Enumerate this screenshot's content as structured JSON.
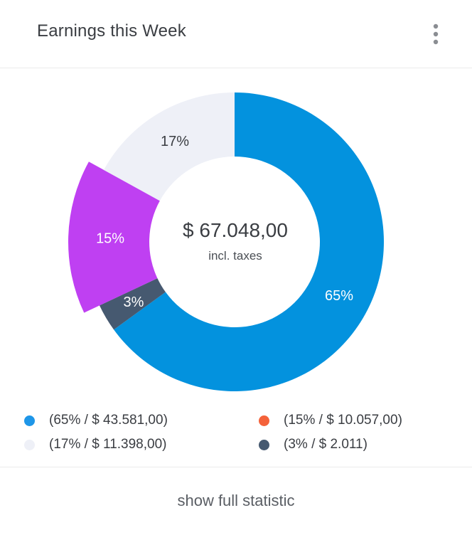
{
  "card": {
    "title": "Earnings this Week",
    "menu_icon": "more-vertical-icon",
    "footer_link": "show full statistic"
  },
  "chart_data": {
    "type": "pie",
    "title": "Earnings this Week",
    "center_value": "$ 67.048,00",
    "center_label": "incl. taxes",
    "slices": [
      {
        "label": "65%",
        "percent": 65,
        "color": "#0392de",
        "exploded": false
      },
      {
        "label": "3%",
        "percent": 3,
        "color": "#465970",
        "exploded": false
      },
      {
        "label": "15%",
        "percent": 15,
        "color": "#bf40f2",
        "exploded": true
      },
      {
        "label": "17%",
        "percent": 17,
        "color": "#eef0f7",
        "exploded": false
      }
    ],
    "legend": [
      {
        "text": "(65% / $ 43.581,00)",
        "color": "#1e96e8"
      },
      {
        "text": "(15% / $ 10.057,00)",
        "color": "#f4623a"
      },
      {
        "text": "(17% / $ 11.398,00)",
        "color": "#eef0f7"
      },
      {
        "text": "(3% / $ 2.011)",
        "color": "#465970"
      }
    ]
  }
}
